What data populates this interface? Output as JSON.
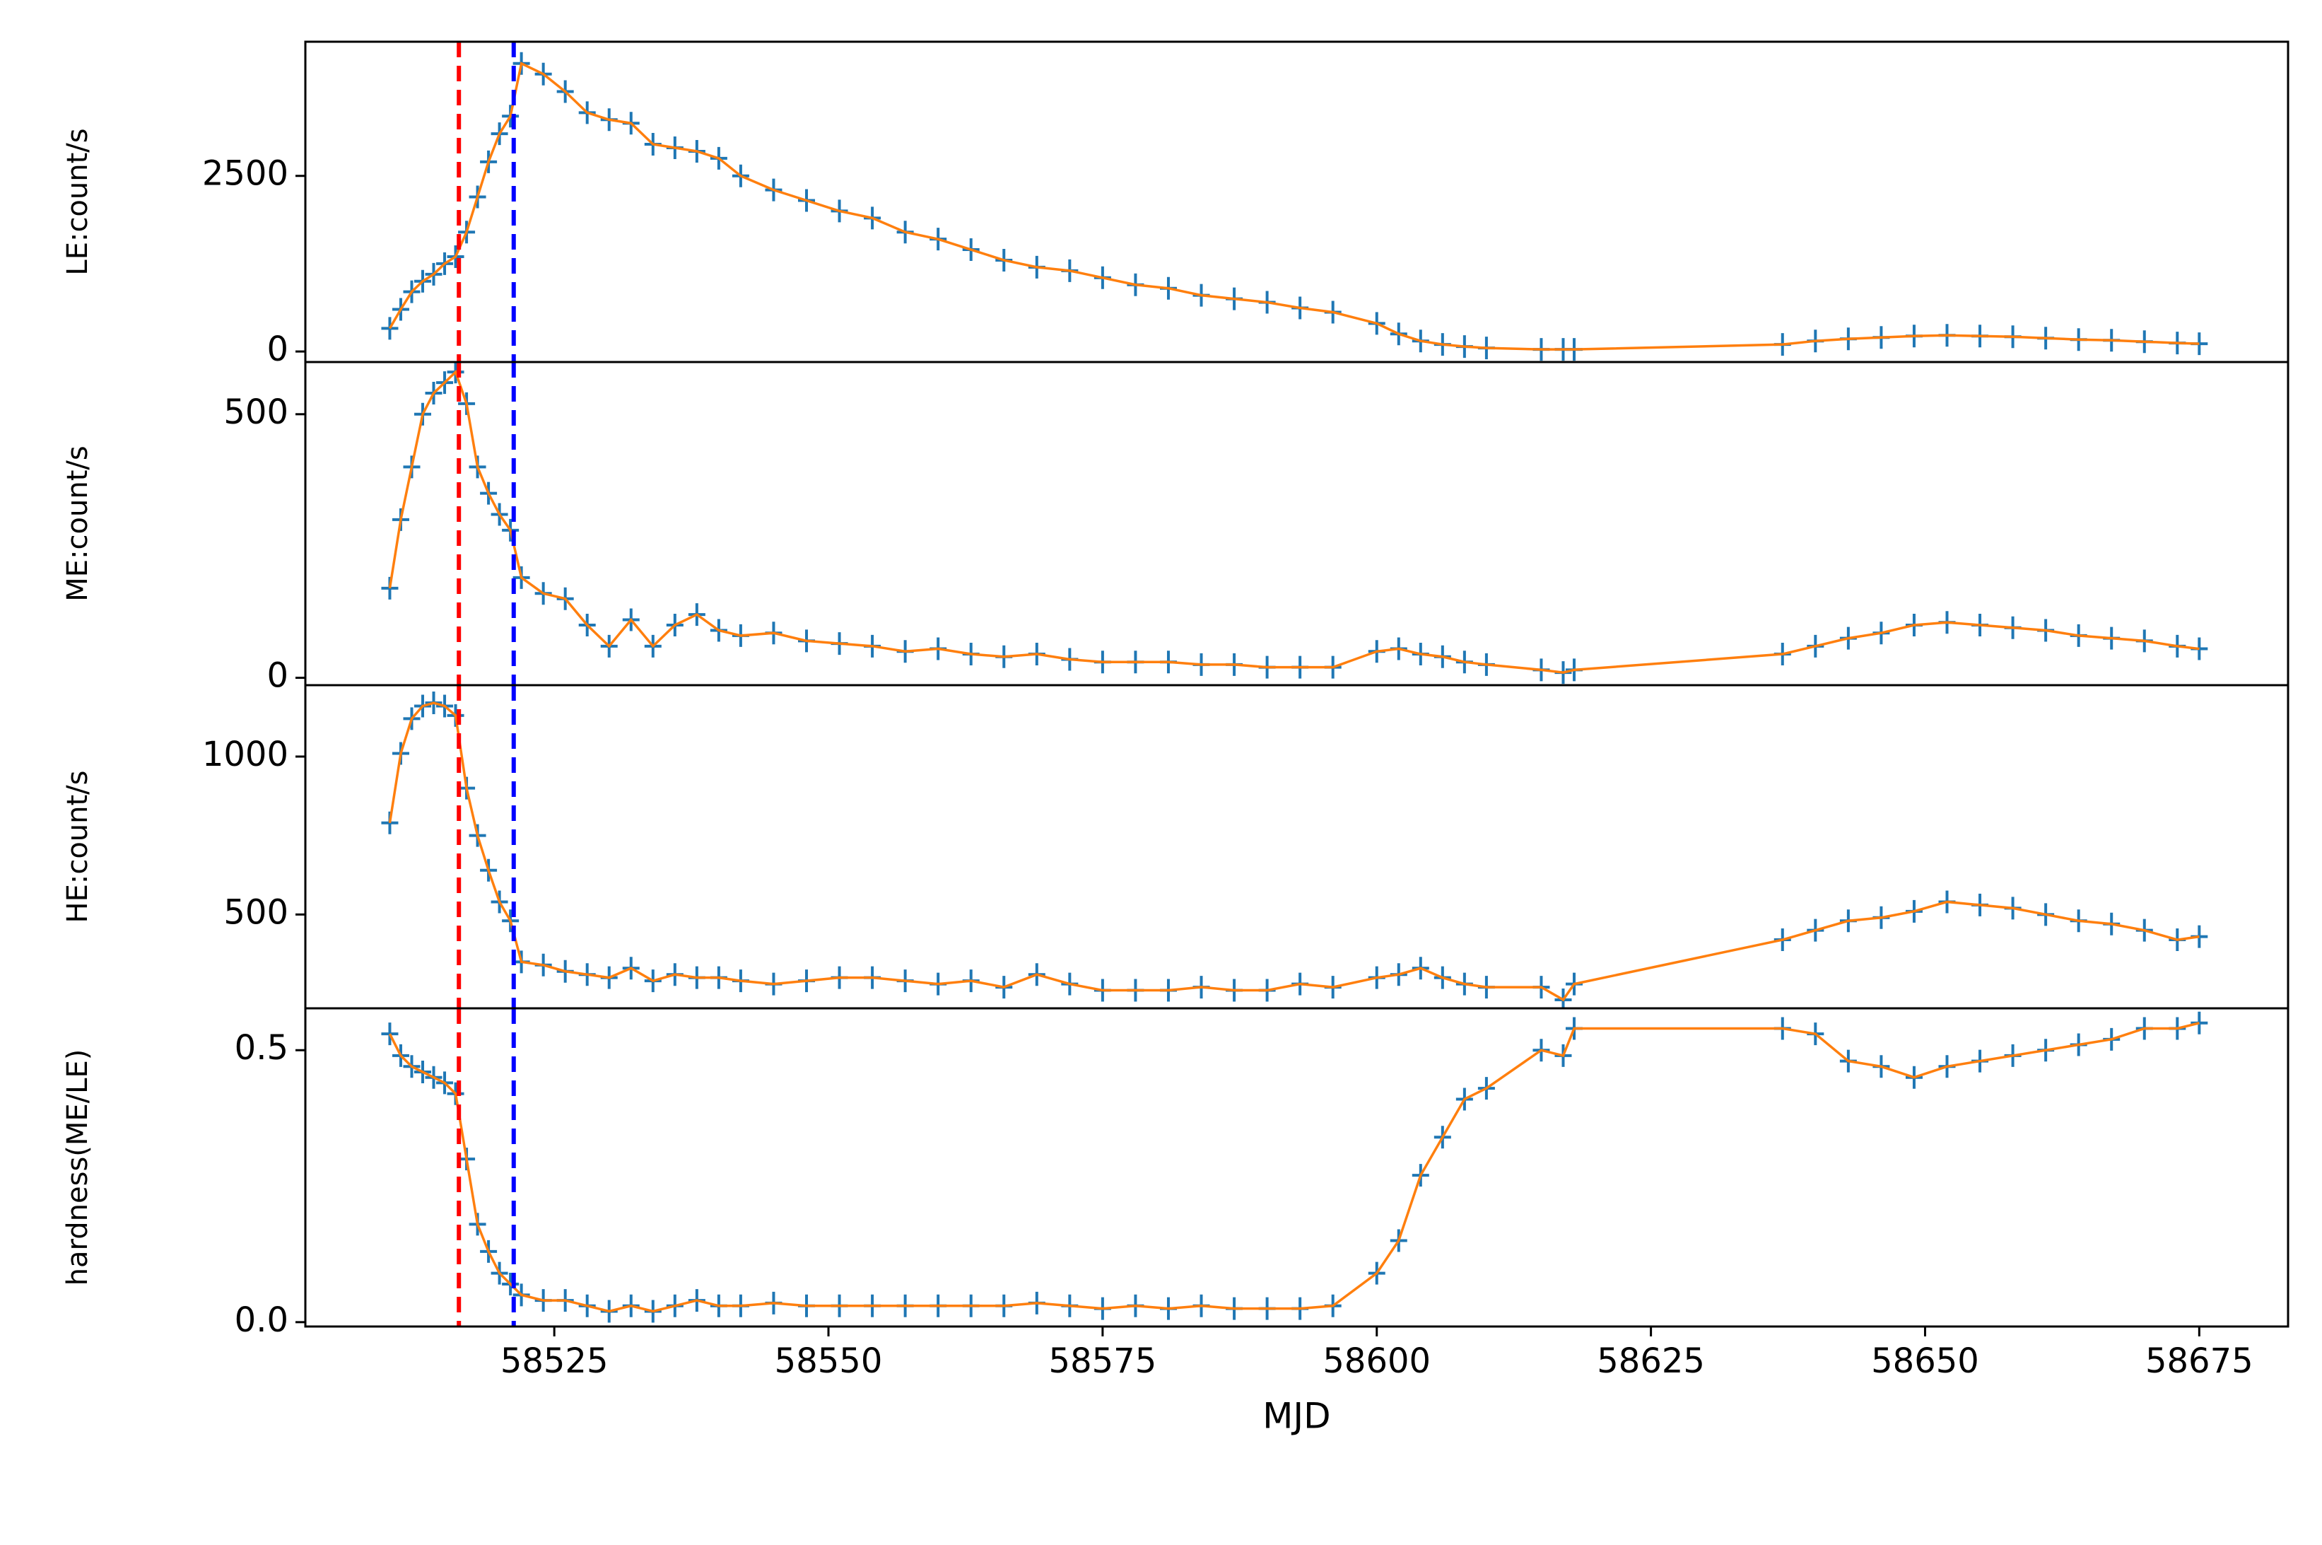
{
  "chart_data": [
    {
      "type": "line",
      "ylabel": "LE:count/s",
      "marker_color": "#1f77b4",
      "line_color": "#ff7f0e",
      "x": [
        58510,
        58511,
        58512,
        58513,
        58514,
        58515,
        58516,
        58517,
        58518,
        58519,
        58520,
        58521,
        58522,
        58524,
        58526,
        58528,
        58530,
        58532,
        58534,
        58536,
        58538,
        58540,
        58542,
        58545,
        58548,
        58551,
        58554,
        58557,
        58560,
        58563,
        58566,
        58569,
        58572,
        58575,
        58578,
        58581,
        58584,
        58587,
        58590,
        58593,
        58596,
        58600,
        58602,
        58604,
        58606,
        58608,
        58610,
        58615,
        58617,
        58618,
        58637,
        58640,
        58643,
        58646,
        58649,
        58652,
        58655,
        58658,
        58661,
        58664,
        58667,
        58670,
        58673,
        58675
      ],
      "values": [
        330,
        600,
        850,
        1000,
        1100,
        1250,
        1350,
        1700,
        2200,
        2700,
        3100,
        3350,
        4100,
        3950,
        3700,
        3400,
        3300,
        3250,
        2950,
        2900,
        2850,
        2750,
        2500,
        2300,
        2150,
        2000,
        1900,
        1700,
        1600,
        1450,
        1300,
        1200,
        1150,
        1050,
        950,
        900,
        800,
        750,
        700,
        620,
        560,
        400,
        250,
        150,
        100,
        70,
        50,
        30,
        30,
        30,
        100,
        150,
        180,
        200,
        220,
        230,
        220,
        210,
        190,
        170,
        160,
        140,
        120,
        110
      ],
      "xlim": [
        58502.3,
        58683.1
      ],
      "ylim": [
        -150,
        4410
      ],
      "yticks": [
        0,
        2500
      ],
      "vlines": [
        {
          "x": 58516.3,
          "color": "#ff0000"
        },
        {
          "x": 58521.3,
          "color": "#0000ff"
        }
      ]
    },
    {
      "type": "line",
      "ylabel": "ME:count/s",
      "marker_color": "#1f77b4",
      "line_color": "#ff7f0e",
      "x": [
        58510,
        58511,
        58512,
        58513,
        58514,
        58515,
        58516,
        58517,
        58518,
        58519,
        58520,
        58521,
        58522,
        58524,
        58526,
        58528,
        58530,
        58532,
        58534,
        58536,
        58538,
        58540,
        58542,
        58545,
        58548,
        58551,
        58554,
        58557,
        58560,
        58563,
        58566,
        58569,
        58572,
        58575,
        58578,
        58581,
        58584,
        58587,
        58590,
        58593,
        58596,
        58600,
        58602,
        58604,
        58606,
        58608,
        58610,
        58615,
        58617,
        58618,
        58637,
        58640,
        58643,
        58646,
        58649,
        58652,
        58655,
        58658,
        58661,
        58664,
        58667,
        58670,
        58673,
        58675
      ],
      "values": [
        170,
        300,
        400,
        500,
        540,
        560,
        580,
        520,
        400,
        350,
        310,
        280,
        190,
        160,
        150,
        100,
        60,
        110,
        60,
        100,
        120,
        90,
        80,
        85,
        70,
        65,
        60,
        50,
        55,
        45,
        40,
        45,
        35,
        30,
        30,
        30,
        25,
        25,
        20,
        20,
        20,
        50,
        55,
        45,
        40,
        30,
        25,
        15,
        10,
        15,
        45,
        60,
        75,
        85,
        100,
        105,
        100,
        95,
        90,
        80,
        75,
        70,
        60,
        55
      ],
      "xlim": [
        58502.3,
        58683.1
      ],
      "ylim": [
        -14,
        599
      ],
      "yticks": [
        0,
        500
      ],
      "vlines": [
        {
          "x": 58516.3,
          "color": "#ff0000"
        },
        {
          "x": 58521.3,
          "color": "#0000ff"
        }
      ]
    },
    {
      "type": "line",
      "ylabel": "HE:count/s",
      "marker_color": "#1f77b4",
      "line_color": "#ff7f0e",
      "x": [
        58510,
        58511,
        58512,
        58513,
        58514,
        58515,
        58516,
        58517,
        58518,
        58519,
        58520,
        58521,
        58522,
        58524,
        58526,
        58528,
        58530,
        58532,
        58534,
        58536,
        58538,
        58540,
        58542,
        58545,
        58548,
        58551,
        58554,
        58557,
        58560,
        58563,
        58566,
        58569,
        58572,
        58575,
        58578,
        58581,
        58584,
        58587,
        58590,
        58593,
        58596,
        58600,
        58602,
        58604,
        58606,
        58608,
        58610,
        58615,
        58617,
        58618,
        58637,
        58640,
        58643,
        58646,
        58649,
        58652,
        58655,
        58658,
        58661,
        58664,
        58667,
        58670,
        58673,
        58675
      ],
      "values": [
        790,
        1010,
        1120,
        1160,
        1170,
        1160,
        1130,
        900,
        750,
        640,
        540,
        480,
        350,
        340,
        320,
        310,
        300,
        330,
        290,
        310,
        300,
        300,
        290,
        280,
        290,
        300,
        300,
        290,
        280,
        290,
        270,
        310,
        280,
        260,
        260,
        260,
        270,
        260,
        260,
        280,
        270,
        300,
        310,
        330,
        300,
        280,
        270,
        270,
        230,
        280,
        420,
        450,
        480,
        490,
        510,
        540,
        530,
        520,
        500,
        480,
        470,
        450,
        420,
        430
      ],
      "xlim": [
        58502.3,
        58683.1
      ],
      "ylim": [
        203,
        1226
      ],
      "yticks": [
        500,
        1000
      ],
      "vlines": [
        {
          "x": 58516.3,
          "color": "#ff0000"
        },
        {
          "x": 58521.3,
          "color": "#0000ff"
        }
      ]
    },
    {
      "type": "line",
      "ylabel": "hardness(ME/LE)",
      "xlabel": "MJD",
      "marker_color": "#1f77b4",
      "line_color": "#ff7f0e",
      "x": [
        58510,
        58511,
        58512,
        58513,
        58514,
        58515,
        58516,
        58517,
        58518,
        58519,
        58520,
        58521,
        58522,
        58524,
        58526,
        58528,
        58530,
        58532,
        58534,
        58536,
        58538,
        58540,
        58542,
        58545,
        58548,
        58551,
        58554,
        58557,
        58560,
        58563,
        58566,
        58569,
        58572,
        58575,
        58578,
        58581,
        58584,
        58587,
        58590,
        58593,
        58596,
        58600,
        58602,
        58604,
        58606,
        58608,
        58610,
        58615,
        58617,
        58618,
        58637,
        58640,
        58643,
        58646,
        58649,
        58652,
        58655,
        58658,
        58661,
        58664,
        58667,
        58670,
        58673,
        58675
      ],
      "values": [
        0.53,
        0.49,
        0.47,
        0.46,
        0.45,
        0.44,
        0.42,
        0.3,
        0.18,
        0.13,
        0.09,
        0.07,
        0.05,
        0.04,
        0.04,
        0.03,
        0.02,
        0.03,
        0.02,
        0.03,
        0.04,
        0.03,
        0.03,
        0.035,
        0.03,
        0.03,
        0.03,
        0.03,
        0.03,
        0.03,
        0.03,
        0.035,
        0.03,
        0.025,
        0.03,
        0.025,
        0.03,
        0.025,
        0.025,
        0.025,
        0.03,
        0.09,
        0.15,
        0.27,
        0.34,
        0.41,
        0.43,
        0.5,
        0.49,
        0.54,
        0.54,
        0.53,
        0.48,
        0.47,
        0.45,
        0.47,
        0.48,
        0.49,
        0.5,
        0.51,
        0.52,
        0.54,
        0.54,
        0.55
      ],
      "xlim": [
        58502.3,
        58683.1
      ],
      "ylim": [
        -0.008,
        0.577
      ],
      "yticks": [
        {
          "value": 0,
          "label": "0.0"
        },
        {
          "value": 0.5,
          "label": "0.5"
        }
      ],
      "xticks": [
        58525,
        58550,
        58575,
        58600,
        58625,
        58650,
        58675
      ],
      "vlines": [
        {
          "x": 58516.3,
          "color": "#ff0000"
        },
        {
          "x": 58521.3,
          "color": "#0000ff"
        }
      ]
    }
  ]
}
